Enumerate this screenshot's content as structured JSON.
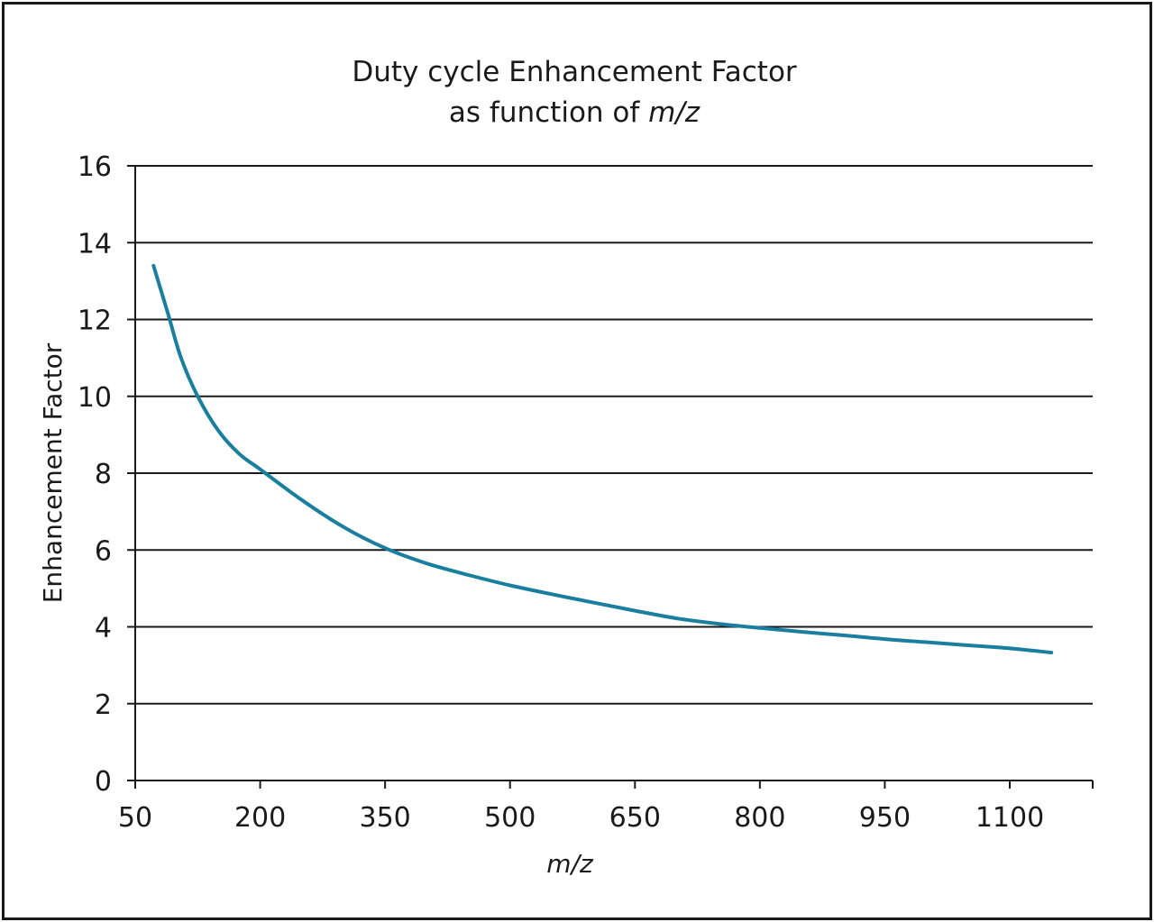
{
  "chart_data": {
    "type": "line",
    "title_line1": "Duty cycle Enhancement Factor",
    "title_line2_prefix": "as function of ",
    "title_line2_italic": "m/z",
    "xlabel": "m/z",
    "ylabel": "Enhancement Factor",
    "xlim": [
      50,
      1200
    ],
    "ylim": [
      0,
      16
    ],
    "x_ticks": [
      50,
      200,
      350,
      500,
      650,
      800,
      950,
      1100
    ],
    "y_ticks": [
      0,
      2,
      4,
      6,
      8,
      10,
      12,
      14,
      16
    ],
    "grid": "horizontal",
    "line_color": "#1a7f9e",
    "series": [
      {
        "x": [
          72,
          90,
          105,
          125,
          150,
          175,
          200,
          250,
          300,
          350,
          400,
          450,
          500,
          550,
          600,
          650,
          700,
          750,
          800,
          850,
          900,
          950,
          1000,
          1050,
          1100,
          1150
        ],
        "values": [
          13.4,
          12.1,
          11.0,
          10.0,
          9.1,
          8.5,
          8.1,
          7.3,
          6.6,
          6.05,
          5.65,
          5.35,
          5.08,
          4.85,
          4.63,
          4.42,
          4.22,
          4.08,
          3.97,
          3.87,
          3.78,
          3.68,
          3.6,
          3.52,
          3.44,
          3.33
        ]
      }
    ]
  }
}
